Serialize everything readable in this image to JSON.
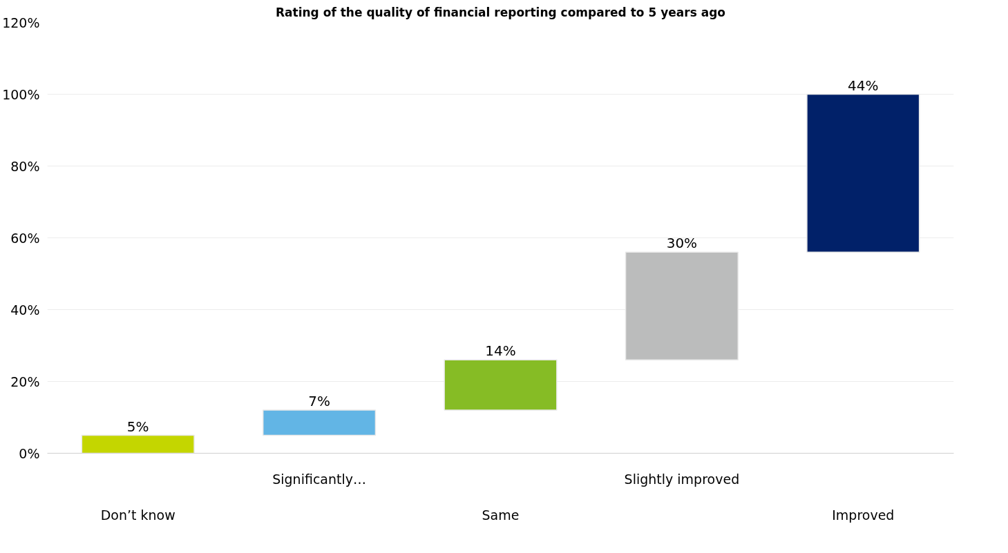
{
  "chart_data": {
    "type": "bar",
    "title": "Rating of the quality of financial reporting compared to 5 years ago",
    "categories": [
      "Don’t know",
      "Significantly…",
      "Same",
      "Slightly improved",
      "Improved"
    ],
    "values": [
      5,
      7,
      14,
      30,
      44
    ],
    "base": [
      0,
      5,
      12,
      26,
      56
    ],
    "colors": [
      "#c4d600",
      "#62b5e5",
      "#86bc25",
      "#bbbcbc",
      "#012169"
    ],
    "value_labels": [
      "5%",
      "7%",
      "14%",
      "30%",
      "44%"
    ],
    "ylim": [
      0,
      120
    ],
    "yticks": [
      {
        "value": 0,
        "label": "0%"
      },
      {
        "value": 20,
        "label": "20%"
      },
      {
        "value": 40,
        "label": "40%"
      },
      {
        "value": 60,
        "label": "60%"
      },
      {
        "value": 80,
        "label": "80%"
      },
      {
        "value": 100,
        "label": "100%"
      },
      {
        "value": 120,
        "label": "120%"
      }
    ],
    "grid": "y"
  }
}
